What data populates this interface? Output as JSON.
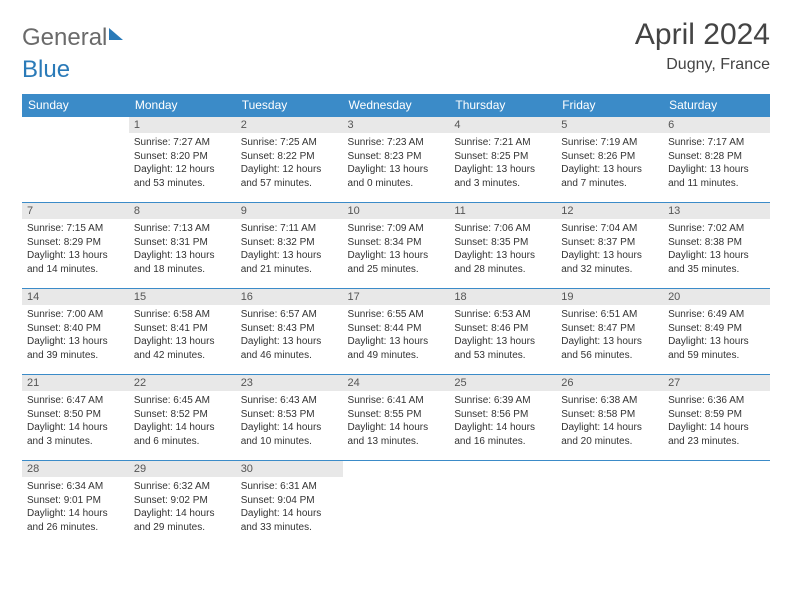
{
  "brand": {
    "part1": "General",
    "part2": "Blue"
  },
  "title": "April 2024",
  "location": "Dugny, France",
  "colors": {
    "header_bg": "#3b8bc8",
    "header_text": "#ffffff",
    "daynum_bg": "#e8e8e8",
    "row_border": "#3b8bc8",
    "logo_blue": "#2a7ab8",
    "text": "#333333",
    "bg": "#ffffff"
  },
  "weekdays": [
    "Sunday",
    "Monday",
    "Tuesday",
    "Wednesday",
    "Thursday",
    "Friday",
    "Saturday"
  ],
  "weeks": [
    [
      {
        "n": "",
        "lines": [
          "",
          "",
          "",
          ""
        ]
      },
      {
        "n": "1",
        "lines": [
          "Sunrise: 7:27 AM",
          "Sunset: 8:20 PM",
          "Daylight: 12 hours",
          "and 53 minutes."
        ]
      },
      {
        "n": "2",
        "lines": [
          "Sunrise: 7:25 AM",
          "Sunset: 8:22 PM",
          "Daylight: 12 hours",
          "and 57 minutes."
        ]
      },
      {
        "n": "3",
        "lines": [
          "Sunrise: 7:23 AM",
          "Sunset: 8:23 PM",
          "Daylight: 13 hours",
          "and 0 minutes."
        ]
      },
      {
        "n": "4",
        "lines": [
          "Sunrise: 7:21 AM",
          "Sunset: 8:25 PM",
          "Daylight: 13 hours",
          "and 3 minutes."
        ]
      },
      {
        "n": "5",
        "lines": [
          "Sunrise: 7:19 AM",
          "Sunset: 8:26 PM",
          "Daylight: 13 hours",
          "and 7 minutes."
        ]
      },
      {
        "n": "6",
        "lines": [
          "Sunrise: 7:17 AM",
          "Sunset: 8:28 PM",
          "Daylight: 13 hours",
          "and 11 minutes."
        ]
      }
    ],
    [
      {
        "n": "7",
        "lines": [
          "Sunrise: 7:15 AM",
          "Sunset: 8:29 PM",
          "Daylight: 13 hours",
          "and 14 minutes."
        ]
      },
      {
        "n": "8",
        "lines": [
          "Sunrise: 7:13 AM",
          "Sunset: 8:31 PM",
          "Daylight: 13 hours",
          "and 18 minutes."
        ]
      },
      {
        "n": "9",
        "lines": [
          "Sunrise: 7:11 AM",
          "Sunset: 8:32 PM",
          "Daylight: 13 hours",
          "and 21 minutes."
        ]
      },
      {
        "n": "10",
        "lines": [
          "Sunrise: 7:09 AM",
          "Sunset: 8:34 PM",
          "Daylight: 13 hours",
          "and 25 minutes."
        ]
      },
      {
        "n": "11",
        "lines": [
          "Sunrise: 7:06 AM",
          "Sunset: 8:35 PM",
          "Daylight: 13 hours",
          "and 28 minutes."
        ]
      },
      {
        "n": "12",
        "lines": [
          "Sunrise: 7:04 AM",
          "Sunset: 8:37 PM",
          "Daylight: 13 hours",
          "and 32 minutes."
        ]
      },
      {
        "n": "13",
        "lines": [
          "Sunrise: 7:02 AM",
          "Sunset: 8:38 PM",
          "Daylight: 13 hours",
          "and 35 minutes."
        ]
      }
    ],
    [
      {
        "n": "14",
        "lines": [
          "Sunrise: 7:00 AM",
          "Sunset: 8:40 PM",
          "Daylight: 13 hours",
          "and 39 minutes."
        ]
      },
      {
        "n": "15",
        "lines": [
          "Sunrise: 6:58 AM",
          "Sunset: 8:41 PM",
          "Daylight: 13 hours",
          "and 42 minutes."
        ]
      },
      {
        "n": "16",
        "lines": [
          "Sunrise: 6:57 AM",
          "Sunset: 8:43 PM",
          "Daylight: 13 hours",
          "and 46 minutes."
        ]
      },
      {
        "n": "17",
        "lines": [
          "Sunrise: 6:55 AM",
          "Sunset: 8:44 PM",
          "Daylight: 13 hours",
          "and 49 minutes."
        ]
      },
      {
        "n": "18",
        "lines": [
          "Sunrise: 6:53 AM",
          "Sunset: 8:46 PM",
          "Daylight: 13 hours",
          "and 53 minutes."
        ]
      },
      {
        "n": "19",
        "lines": [
          "Sunrise: 6:51 AM",
          "Sunset: 8:47 PM",
          "Daylight: 13 hours",
          "and 56 minutes."
        ]
      },
      {
        "n": "20",
        "lines": [
          "Sunrise: 6:49 AM",
          "Sunset: 8:49 PM",
          "Daylight: 13 hours",
          "and 59 minutes."
        ]
      }
    ],
    [
      {
        "n": "21",
        "lines": [
          "Sunrise: 6:47 AM",
          "Sunset: 8:50 PM",
          "Daylight: 14 hours",
          "and 3 minutes."
        ]
      },
      {
        "n": "22",
        "lines": [
          "Sunrise: 6:45 AM",
          "Sunset: 8:52 PM",
          "Daylight: 14 hours",
          "and 6 minutes."
        ]
      },
      {
        "n": "23",
        "lines": [
          "Sunrise: 6:43 AM",
          "Sunset: 8:53 PM",
          "Daylight: 14 hours",
          "and 10 minutes."
        ]
      },
      {
        "n": "24",
        "lines": [
          "Sunrise: 6:41 AM",
          "Sunset: 8:55 PM",
          "Daylight: 14 hours",
          "and 13 minutes."
        ]
      },
      {
        "n": "25",
        "lines": [
          "Sunrise: 6:39 AM",
          "Sunset: 8:56 PM",
          "Daylight: 14 hours",
          "and 16 minutes."
        ]
      },
      {
        "n": "26",
        "lines": [
          "Sunrise: 6:38 AM",
          "Sunset: 8:58 PM",
          "Daylight: 14 hours",
          "and 20 minutes."
        ]
      },
      {
        "n": "27",
        "lines": [
          "Sunrise: 6:36 AM",
          "Sunset: 8:59 PM",
          "Daylight: 14 hours",
          "and 23 minutes."
        ]
      }
    ],
    [
      {
        "n": "28",
        "lines": [
          "Sunrise: 6:34 AM",
          "Sunset: 9:01 PM",
          "Daylight: 14 hours",
          "and 26 minutes."
        ]
      },
      {
        "n": "29",
        "lines": [
          "Sunrise: 6:32 AM",
          "Sunset: 9:02 PM",
          "Daylight: 14 hours",
          "and 29 minutes."
        ]
      },
      {
        "n": "30",
        "lines": [
          "Sunrise: 6:31 AM",
          "Sunset: 9:04 PM",
          "Daylight: 14 hours",
          "and 33 minutes."
        ]
      },
      {
        "n": "",
        "lines": [
          "",
          "",
          "",
          ""
        ]
      },
      {
        "n": "",
        "lines": [
          "",
          "",
          "",
          ""
        ]
      },
      {
        "n": "",
        "lines": [
          "",
          "",
          "",
          ""
        ]
      },
      {
        "n": "",
        "lines": [
          "",
          "",
          "",
          ""
        ]
      }
    ]
  ]
}
